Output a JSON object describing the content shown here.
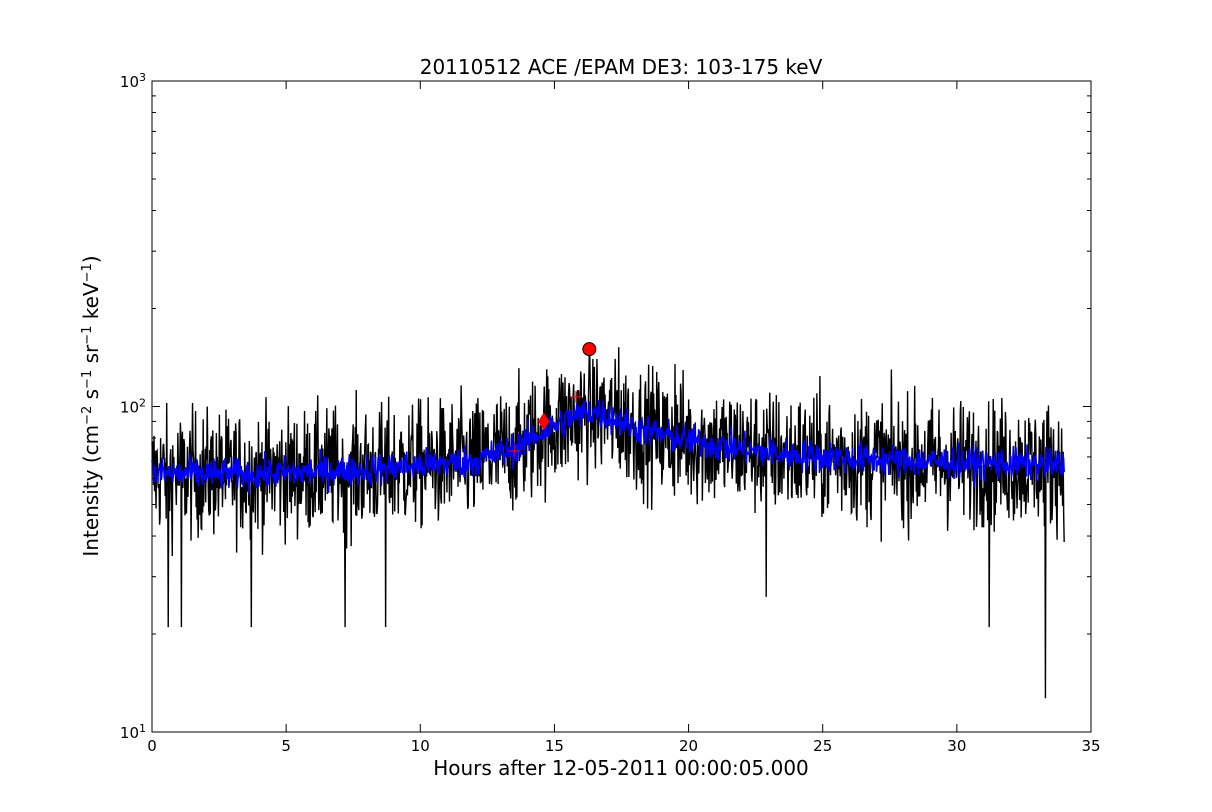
{
  "chart_data": {
    "type": "line",
    "title": "20110512 ACE /EPAM DE3: 103-175 keV",
    "xlabel": "Hours after 12-05-2011 00:00:05.000",
    "ylabel_parts": [
      "Intensity (cm",
      "−2",
      " s",
      "−1",
      " sr",
      "−1",
      " keV",
      "−1",
      ")"
    ],
    "xlim": [
      0,
      35
    ],
    "ylim": [
      10,
      1000
    ],
    "yscale": "log",
    "grid": false,
    "x_ticks": [
      0,
      5,
      10,
      15,
      20,
      25,
      30,
      35
    ],
    "x_tick_labels": [
      "0",
      "5",
      "10",
      "15",
      "20",
      "25",
      "30",
      "35"
    ],
    "y_ticks": [
      {
        "value": 10,
        "base": "10",
        "exp": "1"
      },
      {
        "value": 100,
        "base": "10",
        "exp": "2"
      },
      {
        "value": 1000,
        "base": "10",
        "exp": "3"
      }
    ],
    "series": [
      {
        "style": "raw",
        "color": "#000000",
        "x_range": [
          0,
          34
        ],
        "level_points": [
          [
            0,
            62
          ],
          [
            4,
            62
          ],
          [
            8,
            64
          ],
          [
            12,
            68
          ],
          [
            13.5,
            74
          ],
          [
            14.6,
            84
          ],
          [
            15.6,
            92
          ],
          [
            16.4,
            97
          ],
          [
            17.2,
            92
          ],
          [
            18,
            86
          ],
          [
            19.5,
            80
          ],
          [
            21,
            76
          ],
          [
            23,
            72
          ],
          [
            25,
            70
          ],
          [
            28,
            68
          ],
          [
            31,
            67
          ],
          [
            34,
            66
          ]
        ],
        "noise_factor": 1.55,
        "spikes": [
          {
            "x": 0.6,
            "y": 21
          },
          {
            "x": 1.1,
            "y": 21
          },
          {
            "x": 3.7,
            "y": 21
          },
          {
            "x": 7.2,
            "y": 21
          },
          {
            "x": 8.7,
            "y": 21
          },
          {
            "x": 22.9,
            "y": 26
          },
          {
            "x": 31.2,
            "y": 21
          },
          {
            "x": 33.3,
            "y": 12.7
          },
          {
            "x": 16.3,
            "y": 150
          },
          {
            "x": 17.4,
            "y": 152
          },
          {
            "x": 19.5,
            "y": 135
          }
        ]
      },
      {
        "style": "smoothed",
        "color": "#0000ff",
        "x_range": [
          0,
          34
        ],
        "noise_factor": 1.12
      }
    ],
    "markers": [
      {
        "shape": "plus",
        "x": 13.5,
        "y": 73,
        "color": "#ff0000"
      },
      {
        "shape": "diamond",
        "x": 14.6,
        "y": 90,
        "color": "#ff0000"
      },
      {
        "shape": "plus",
        "x": 15.8,
        "y": 107,
        "color": "#ff0000"
      },
      {
        "shape": "circle",
        "x": 16.3,
        "y": 150,
        "color": "#ff0000"
      }
    ]
  }
}
